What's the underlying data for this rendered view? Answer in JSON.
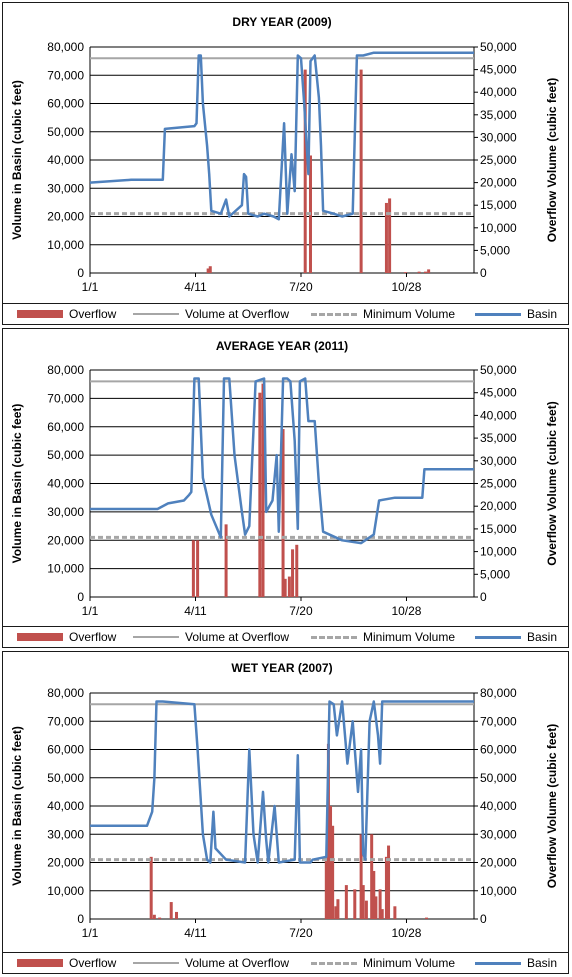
{
  "colors": {
    "overflow": "#c0504d",
    "overflow_volume": "#a6a6a6",
    "minimum_volume": "#a6a6a6",
    "basin": "#4f81bd",
    "grid": "#000000"
  },
  "legend": {
    "overflow": "Overflow",
    "volume_at_overflow": "Volume at Overflow",
    "minimum_volume": "Minimum Volume",
    "basin": "Basin"
  },
  "chart_data": [
    {
      "type": "line",
      "title": "DRY YEAR (2009)",
      "ylabel": "Volume in Basin (cubic feet)",
      "y2label": "Overflow Volume (cubic feet)",
      "x_ticks": [
        "1/1",
        "4/11",
        "7/20",
        "10/28"
      ],
      "ylim": [
        0,
        80000
      ],
      "y2lim": [
        0,
        50000
      ],
      "y_ticks": [
        "0",
        "10,000",
        "20,000",
        "30,000",
        "40,000",
        "50,000",
        "60,000",
        "70,000",
        "80,000"
      ],
      "y2_ticks": [
        "0",
        "5,000",
        "10,000",
        "15,000",
        "20,000",
        "25,000",
        "30,000",
        "35,000",
        "40,000",
        "45,000",
        "50,000"
      ],
      "volume_at_overflow": 76000,
      "minimum_volume": 21000,
      "basin": [
        [
          1,
          32000
        ],
        [
          40,
          33000
        ],
        [
          70,
          33000
        ],
        [
          72,
          51000
        ],
        [
          100,
          52000
        ],
        [
          102,
          53000
        ],
        [
          104,
          77000
        ],
        [
          106,
          77000
        ],
        [
          108,
          60000
        ],
        [
          112,
          45000
        ],
        [
          114,
          35000
        ],
        [
          116,
          22000
        ],
        [
          125,
          21000
        ],
        [
          130,
          26000
        ],
        [
          133,
          20000
        ],
        [
          145,
          24000
        ],
        [
          147,
          35000
        ],
        [
          149,
          34000
        ],
        [
          151,
          21000
        ],
        [
          160,
          20000
        ],
        [
          166,
          21000
        ],
        [
          175,
          20000
        ],
        [
          180,
          19000
        ],
        [
          185,
          53000
        ],
        [
          188,
          21000
        ],
        [
          192,
          42000
        ],
        [
          195,
          29000
        ],
        [
          198,
          77000
        ],
        [
          201,
          76000
        ],
        [
          204,
          60000
        ],
        [
          208,
          35000
        ],
        [
          210,
          75000
        ],
        [
          214,
          77000
        ],
        [
          218,
          62000
        ],
        [
          220,
          45000
        ],
        [
          222,
          22000
        ],
        [
          232,
          21000
        ],
        [
          240,
          20000
        ],
        [
          250,
          21000
        ],
        [
          254,
          77000
        ],
        [
          260,
          77000
        ],
        [
          270,
          78000
        ],
        [
          365,
          78000
        ]
      ],
      "overflow": [
        [
          113,
          1000
        ],
        [
          115,
          1500
        ],
        [
          205,
          45000
        ],
        [
          210,
          26000
        ],
        [
          258,
          45000
        ],
        [
          282,
          15500
        ],
        [
          285,
          16500
        ],
        [
          300,
          200
        ],
        [
          313,
          300
        ],
        [
          319,
          300
        ],
        [
          322,
          800
        ]
      ]
    },
    {
      "type": "line",
      "title": "AVERAGE  YEAR (2011)",
      "ylabel": "Volume in Basin (cubic feet)",
      "y2label": "Overflow Volume (cubic feet)",
      "x_ticks": [
        "1/1",
        "4/11",
        "7/20",
        "10/28"
      ],
      "ylim": [
        0,
        80000
      ],
      "y2lim": [
        0,
        50000
      ],
      "y_ticks": [
        "0",
        "10,000",
        "20,000",
        "30,000",
        "40,000",
        "50,000",
        "60,000",
        "70,000",
        "80,000"
      ],
      "y2_ticks": [
        "0",
        "5,000",
        "10,000",
        "15,000",
        "20,000",
        "25,000",
        "30,000",
        "35,000",
        "40,000",
        "45,000",
        "50,000"
      ],
      "volume_at_overflow": 76000,
      "minimum_volume": 21000,
      "basin": [
        [
          1,
          31000
        ],
        [
          65,
          31000
        ],
        [
          75,
          33000
        ],
        [
          90,
          34000
        ],
        [
          95,
          36000
        ],
        [
          97,
          37000
        ],
        [
          100,
          77000
        ],
        [
          104,
          77000
        ],
        [
          108,
          42000
        ],
        [
          116,
          29000
        ],
        [
          125,
          21000
        ],
        [
          128,
          77000
        ],
        [
          133,
          77000
        ],
        [
          138,
          50000
        ],
        [
          145,
          30000
        ],
        [
          148,
          22000
        ],
        [
          152,
          25000
        ],
        [
          158,
          76000
        ],
        [
          166,
          77000
        ],
        [
          168,
          30000
        ],
        [
          174,
          34000
        ],
        [
          178,
          50000
        ],
        [
          180,
          23000
        ],
        [
          184,
          77000
        ],
        [
          188,
          77000
        ],
        [
          191,
          76000
        ],
        [
          195,
          55000
        ],
        [
          198,
          24000
        ],
        [
          200,
          76000
        ],
        [
          205,
          77000
        ],
        [
          208,
          62000
        ],
        [
          214,
          62000
        ],
        [
          218,
          40000
        ],
        [
          222,
          23000
        ],
        [
          240,
          20000
        ],
        [
          258,
          19000
        ],
        [
          270,
          22000
        ],
        [
          275,
          34000
        ],
        [
          290,
          35000
        ],
        [
          316,
          35000
        ],
        [
          318,
          45000
        ],
        [
          365,
          45000
        ]
      ],
      "overflow": [
        [
          99,
          12500
        ],
        [
          103,
          12500
        ],
        [
          130,
          16000
        ],
        [
          162,
          45000
        ],
        [
          165,
          47000
        ],
        [
          184,
          37000
        ],
        [
          186,
          4000
        ],
        [
          190,
          4500
        ],
        [
          193,
          10500
        ],
        [
          197,
          11500
        ]
      ]
    },
    {
      "type": "line",
      "title": "WET YEAR (2007)",
      "ylabel": "Volume in Basin (cubic feet)",
      "y2label": "Overflow Volume (cubic feet)",
      "x_ticks": [
        "1/1",
        "4/11",
        "7/20",
        "10/28"
      ],
      "ylim": [
        0,
        80000
      ],
      "y2lim": [
        0,
        80000
      ],
      "y_ticks": [
        "0",
        "10,000",
        "20,000",
        "30,000",
        "40,000",
        "50,000",
        "60,000",
        "70,000",
        "80,000"
      ],
      "y2_ticks": [
        "0",
        "10,000",
        "20,000",
        "30,000",
        "40,000",
        "50,000",
        "60,000",
        "70,000",
        "80,000"
      ],
      "volume_at_overflow": 76000,
      "minimum_volume": 21000,
      "basin": [
        [
          1,
          33000
        ],
        [
          55,
          33000
        ],
        [
          60,
          38000
        ],
        [
          62,
          50000
        ],
        [
          64,
          77000
        ],
        [
          70,
          77000
        ],
        [
          100,
          76000
        ],
        [
          103,
          60000
        ],
        [
          108,
          30000
        ],
        [
          112,
          21000
        ],
        [
          115,
          20000
        ],
        [
          118,
          38000
        ],
        [
          120,
          25000
        ],
        [
          130,
          21000
        ],
        [
          148,
          20000
        ],
        [
          152,
          60000
        ],
        [
          156,
          30000
        ],
        [
          160,
          20000
        ],
        [
          165,
          45000
        ],
        [
          168,
          28000
        ],
        [
          170,
          20000
        ],
        [
          176,
          40000
        ],
        [
          180,
          20000
        ],
        [
          195,
          21000
        ],
        [
          198,
          58000
        ],
        [
          200,
          20000
        ],
        [
          210,
          20000
        ],
        [
          212,
          21000
        ],
        [
          225,
          22000
        ],
        [
          228,
          77000
        ],
        [
          232,
          76000
        ],
        [
          235,
          65000
        ],
        [
          240,
          77000
        ],
        [
          245,
          55000
        ],
        [
          250,
          70000
        ],
        [
          255,
          45000
        ],
        [
          258,
          60000
        ],
        [
          260,
          23000
        ],
        [
          262,
          21000
        ],
        [
          266,
          70000
        ],
        [
          270,
          77000
        ],
        [
          274,
          65000
        ],
        [
          276,
          55000
        ],
        [
          278,
          77000
        ],
        [
          280,
          77000
        ],
        [
          365,
          77000
        ]
      ],
      "overflow": [
        [
          59,
          22000
        ],
        [
          62,
          1500
        ],
        [
          67,
          500
        ],
        [
          78,
          6000
        ],
        [
          83,
          2500
        ],
        [
          225,
          22000
        ],
        [
          227,
          62000
        ],
        [
          229,
          40000
        ],
        [
          231,
          33000
        ],
        [
          234,
          4500
        ],
        [
          236,
          7000
        ],
        [
          244,
          12000
        ],
        [
          252,
          10500
        ],
        [
          258,
          30000
        ],
        [
          260,
          12000
        ],
        [
          263,
          6500
        ],
        [
          268,
          30000
        ],
        [
          270,
          17000
        ],
        [
          272,
          8000
        ],
        [
          276,
          10500
        ],
        [
          278,
          3500
        ],
        [
          282,
          22000
        ],
        [
          284,
          26000
        ],
        [
          290,
          4500
        ],
        [
          320,
          500
        ]
      ]
    }
  ]
}
